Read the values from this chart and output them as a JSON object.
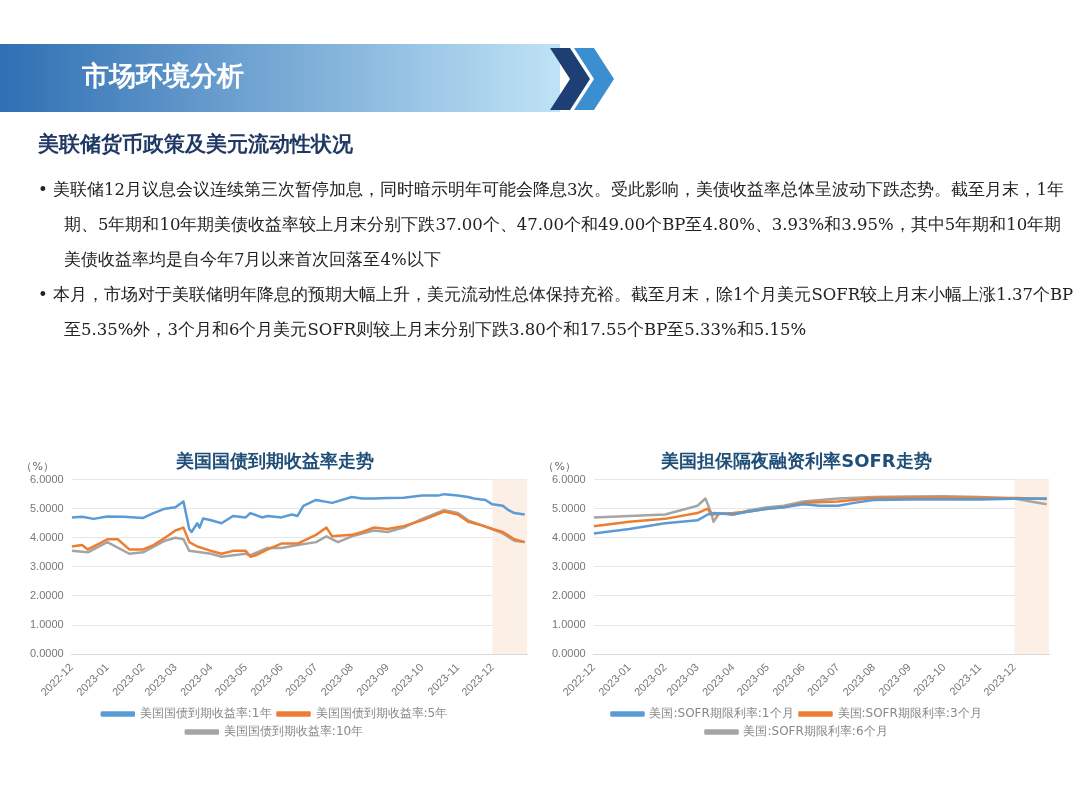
{
  "chart_data": [
    {
      "type": "other",
      "title": "市场环境分析",
      "subtitle": "美联储货币政策及美元流动性状况",
      "annotations": [
        "• 美联储12月议息会议连续第三次暂停加息，同时暗示明年可能会降息3次。受此影响，美债收益率总体呈波动下跌态势。截至月末，1年期、5年期和10年期美债收益率较上月末分别下跌37.00个、47.00个和49.00个BP至4.80%、3.93%和3.95%，其中5年期和10年期美债收益率均是自今年7月以来首次回落至4%以下",
        "• 本月，市场对于美联储明年降息的预期大幅上升，美元流动性总体保持充裕。截至月末，除1个月美元SOFR较上月末小幅上涨1.37个BP至5.35%外，3个月和6个月美元SOFR则较上月末分别下跌3.80个和17.55个BP至5.33%和5.15%"
      ]
    },
    {
      "type": "line",
      "title": "美国国债到期收益率走势",
      "ylabel": "（%）",
      "legend": "bottom",
      "grid": "y",
      "marker": "none",
      "xlim": [
        "2022-12-01",
        "2023-12-31"
      ],
      "xticks": [
        "2022-12",
        "2023-01",
        "2023-02",
        "2023-03",
        "2023-04",
        "2023-05",
        "2023-06",
        "2023-07",
        "2023-08",
        "2023-09",
        "2023-10",
        "2023-11",
        "2023-12"
      ],
      "ylim": [
        0,
        6
      ],
      "yticks": [
        {
          "value": 0,
          "label": "0.0000"
        },
        {
          "value": 1,
          "label": "1.0000"
        },
        {
          "value": 2,
          "label": "2.0000"
        },
        {
          "value": 3,
          "label": "3.0000"
        },
        {
          "value": 4,
          "label": "4.0000"
        },
        {
          "value": 5,
          "label": "5.0000"
        },
        {
          "value": 6,
          "label": "6.0000"
        }
      ],
      "bands": [
        {
          "axis": "x",
          "from": "2023-12-01",
          "to": "2023-12-31",
          "color": "#fcefe6"
        }
      ],
      "series": [
        {
          "name": "美国国债到期收益率:1年",
          "color": "#5b9bd5",
          "x": [
            "2022-12-01",
            "2022-12-10",
            "2022-12-20",
            "2023-01-01",
            "2023-01-15",
            "2023-02-01",
            "2023-02-10",
            "2023-02-20",
            "2023-03-01",
            "2023-03-08",
            "2023-03-13",
            "2023-03-15",
            "2023-03-20",
            "2023-03-22",
            "2023-03-25",
            "2023-04-01",
            "2023-04-10",
            "2023-04-20",
            "2023-05-01",
            "2023-05-05",
            "2023-05-15",
            "2023-05-20",
            "2023-06-01",
            "2023-06-10",
            "2023-06-15",
            "2023-06-20",
            "2023-07-01",
            "2023-07-15",
            "2023-08-01",
            "2023-08-10",
            "2023-08-20",
            "2023-09-01",
            "2023-09-15",
            "2023-10-01",
            "2023-10-15",
            "2023-10-20",
            "2023-11-01",
            "2023-11-10",
            "2023-11-15",
            "2023-11-25",
            "2023-12-01",
            "2023-12-10",
            "2023-12-15",
            "2023-12-20",
            "2023-12-29"
          ],
          "values": [
            4.7,
            4.72,
            4.65,
            4.73,
            4.72,
            4.68,
            4.85,
            5.0,
            5.05,
            5.25,
            4.3,
            4.2,
            4.5,
            4.35,
            4.66,
            4.6,
            4.5,
            4.75,
            4.7,
            4.85,
            4.7,
            4.75,
            4.7,
            4.8,
            4.75,
            5.1,
            5.3,
            5.2,
            5.4,
            5.35,
            5.35,
            5.37,
            5.38,
            5.45,
            5.45,
            5.5,
            5.45,
            5.4,
            5.35,
            5.3,
            5.15,
            5.1,
            4.95,
            4.85,
            4.8
          ]
        },
        {
          "name": "美国国债到期收益率:5年",
          "color": "#ed7d31",
          "x": [
            "2022-12-01",
            "2022-12-10",
            "2022-12-15",
            "2022-12-25",
            "2023-01-01",
            "2023-01-10",
            "2023-01-20",
            "2023-02-01",
            "2023-02-10",
            "2023-02-20",
            "2023-03-01",
            "2023-03-08",
            "2023-03-13",
            "2023-03-20",
            "2023-04-01",
            "2023-04-10",
            "2023-04-20",
            "2023-05-01",
            "2023-05-05",
            "2023-05-10",
            "2023-05-20",
            "2023-06-01",
            "2023-06-15",
            "2023-07-01",
            "2023-07-10",
            "2023-07-15",
            "2023-08-01",
            "2023-08-10",
            "2023-08-20",
            "2023-09-01",
            "2023-09-15",
            "2023-10-01",
            "2023-10-20",
            "2023-11-01",
            "2023-11-10",
            "2023-11-20",
            "2023-12-01",
            "2023-12-10",
            "2023-12-20",
            "2023-12-29"
          ],
          "values": [
            3.7,
            3.75,
            3.6,
            3.8,
            3.95,
            3.95,
            3.6,
            3.6,
            3.75,
            4.0,
            4.25,
            4.35,
            3.85,
            3.7,
            3.55,
            3.45,
            3.55,
            3.55,
            3.35,
            3.4,
            3.6,
            3.8,
            3.8,
            4.1,
            4.35,
            4.05,
            4.1,
            4.2,
            4.35,
            4.3,
            4.4,
            4.6,
            4.9,
            4.8,
            4.55,
            4.45,
            4.3,
            4.2,
            3.95,
            3.85
          ]
        },
        {
          "name": "美国国债到期收益率:10年",
          "color": "#a5a5a5",
          "x": [
            "2022-12-01",
            "2022-12-15",
            "2023-01-01",
            "2023-01-20",
            "2023-02-01",
            "2023-02-20",
            "2023-03-01",
            "2023-03-08",
            "2023-03-13",
            "2023-04-01",
            "2023-04-10",
            "2023-05-01",
            "2023-05-05",
            "2023-05-20",
            "2023-06-01",
            "2023-06-15",
            "2023-07-01",
            "2023-07-10",
            "2023-07-20",
            "2023-08-01",
            "2023-08-20",
            "2023-09-01",
            "2023-09-15",
            "2023-10-01",
            "2023-10-20",
            "2023-11-01",
            "2023-11-10",
            "2023-11-20",
            "2023-12-01",
            "2023-12-10",
            "2023-12-20",
            "2023-12-29"
          ],
          "values": [
            3.55,
            3.5,
            3.85,
            3.45,
            3.5,
            3.9,
            4.0,
            3.95,
            3.55,
            3.45,
            3.35,
            3.45,
            3.4,
            3.65,
            3.65,
            3.75,
            3.85,
            4.05,
            3.85,
            4.05,
            4.25,
            4.2,
            4.35,
            4.65,
            4.95,
            4.85,
            4.6,
            4.45,
            4.3,
            4.15,
            3.9,
            3.85
          ]
        }
      ]
    },
    {
      "type": "line",
      "title": "美国担保隔夜融资利率SOFR走势",
      "ylabel": "（%）",
      "legend": "bottom",
      "grid": "y",
      "marker": "none",
      "xlim": [
        "2022-12-01",
        "2023-12-31"
      ],
      "xticks": [
        "2022-12",
        "2023-01",
        "2023-02",
        "2023-03",
        "2023-04",
        "2023-05",
        "2023-06",
        "2023-07",
        "2023-08",
        "2023-09",
        "2023-10",
        "2023-11",
        "2023-12"
      ],
      "ylim": [
        0,
        6
      ],
      "yticks": [
        {
          "value": 0,
          "label": "0.0000"
        },
        {
          "value": 1,
          "label": "1.0000"
        },
        {
          "value": 2,
          "label": "2.0000"
        },
        {
          "value": 3,
          "label": "3.0000"
        },
        {
          "value": 4,
          "label": "4.0000"
        },
        {
          "value": 5,
          "label": "5.0000"
        },
        {
          "value": 6,
          "label": "6.0000"
        }
      ],
      "bands": [
        {
          "axis": "x",
          "from": "2023-12-01",
          "to": "2023-12-31",
          "color": "#fcefe6"
        }
      ],
      "series": [
        {
          "name": "美国:SOFR期限利率:1个月",
          "color": "#5b9bd5",
          "x": [
            "2022-12-01",
            "2023-01-01",
            "2023-02-01",
            "2023-03-01",
            "2023-03-10",
            "2023-03-15",
            "2023-04-01",
            "2023-04-15",
            "2023-05-01",
            "2023-05-15",
            "2023-06-01",
            "2023-06-15",
            "2023-07-01",
            "2023-07-15",
            "2023-08-01",
            "2023-09-01",
            "2023-10-01",
            "2023-11-01",
            "2023-12-01",
            "2023-12-29"
          ],
          "values": [
            4.15,
            4.3,
            4.5,
            4.6,
            4.8,
            4.85,
            4.8,
            4.9,
            5.0,
            5.05,
            5.15,
            5.1,
            5.1,
            5.2,
            5.3,
            5.32,
            5.32,
            5.32,
            5.34,
            5.35
          ]
        },
        {
          "name": "美国:SOFR期限利率:3个月",
          "color": "#ed7d31",
          "x": [
            "2022-12-01",
            "2023-01-01",
            "2023-02-01",
            "2023-03-01",
            "2023-03-10",
            "2023-03-13",
            "2023-04-01",
            "2023-04-15",
            "2023-05-01",
            "2023-05-15",
            "2023-06-01",
            "2023-07-01",
            "2023-08-01",
            "2023-09-01",
            "2023-10-01",
            "2023-11-01",
            "2023-12-01",
            "2023-12-29"
          ],
          "values": [
            4.4,
            4.55,
            4.65,
            4.85,
            5.0,
            4.8,
            4.85,
            4.9,
            5.0,
            5.05,
            5.2,
            5.25,
            5.37,
            5.38,
            5.38,
            5.37,
            5.37,
            5.33
          ]
        },
        {
          "name": "美国:SOFR期限利率:6个月",
          "color": "#a5a5a5",
          "x": [
            "2022-12-01",
            "2023-01-01",
            "2023-02-01",
            "2023-03-01",
            "2023-03-08",
            "2023-03-13",
            "2023-03-15",
            "2023-03-20",
            "2023-04-01",
            "2023-04-15",
            "2023-05-01",
            "2023-05-15",
            "2023-06-01",
            "2023-07-01",
            "2023-08-01",
            "2023-09-01",
            "2023-10-01",
            "2023-11-01",
            "2023-12-01",
            "2023-12-15",
            "2023-12-29"
          ],
          "values": [
            4.7,
            4.75,
            4.8,
            5.1,
            5.35,
            4.85,
            4.55,
            4.85,
            4.8,
            4.95,
            5.05,
            5.1,
            5.25,
            5.35,
            5.4,
            5.42,
            5.43,
            5.4,
            5.35,
            5.25,
            5.15
          ]
        }
      ]
    }
  ]
}
